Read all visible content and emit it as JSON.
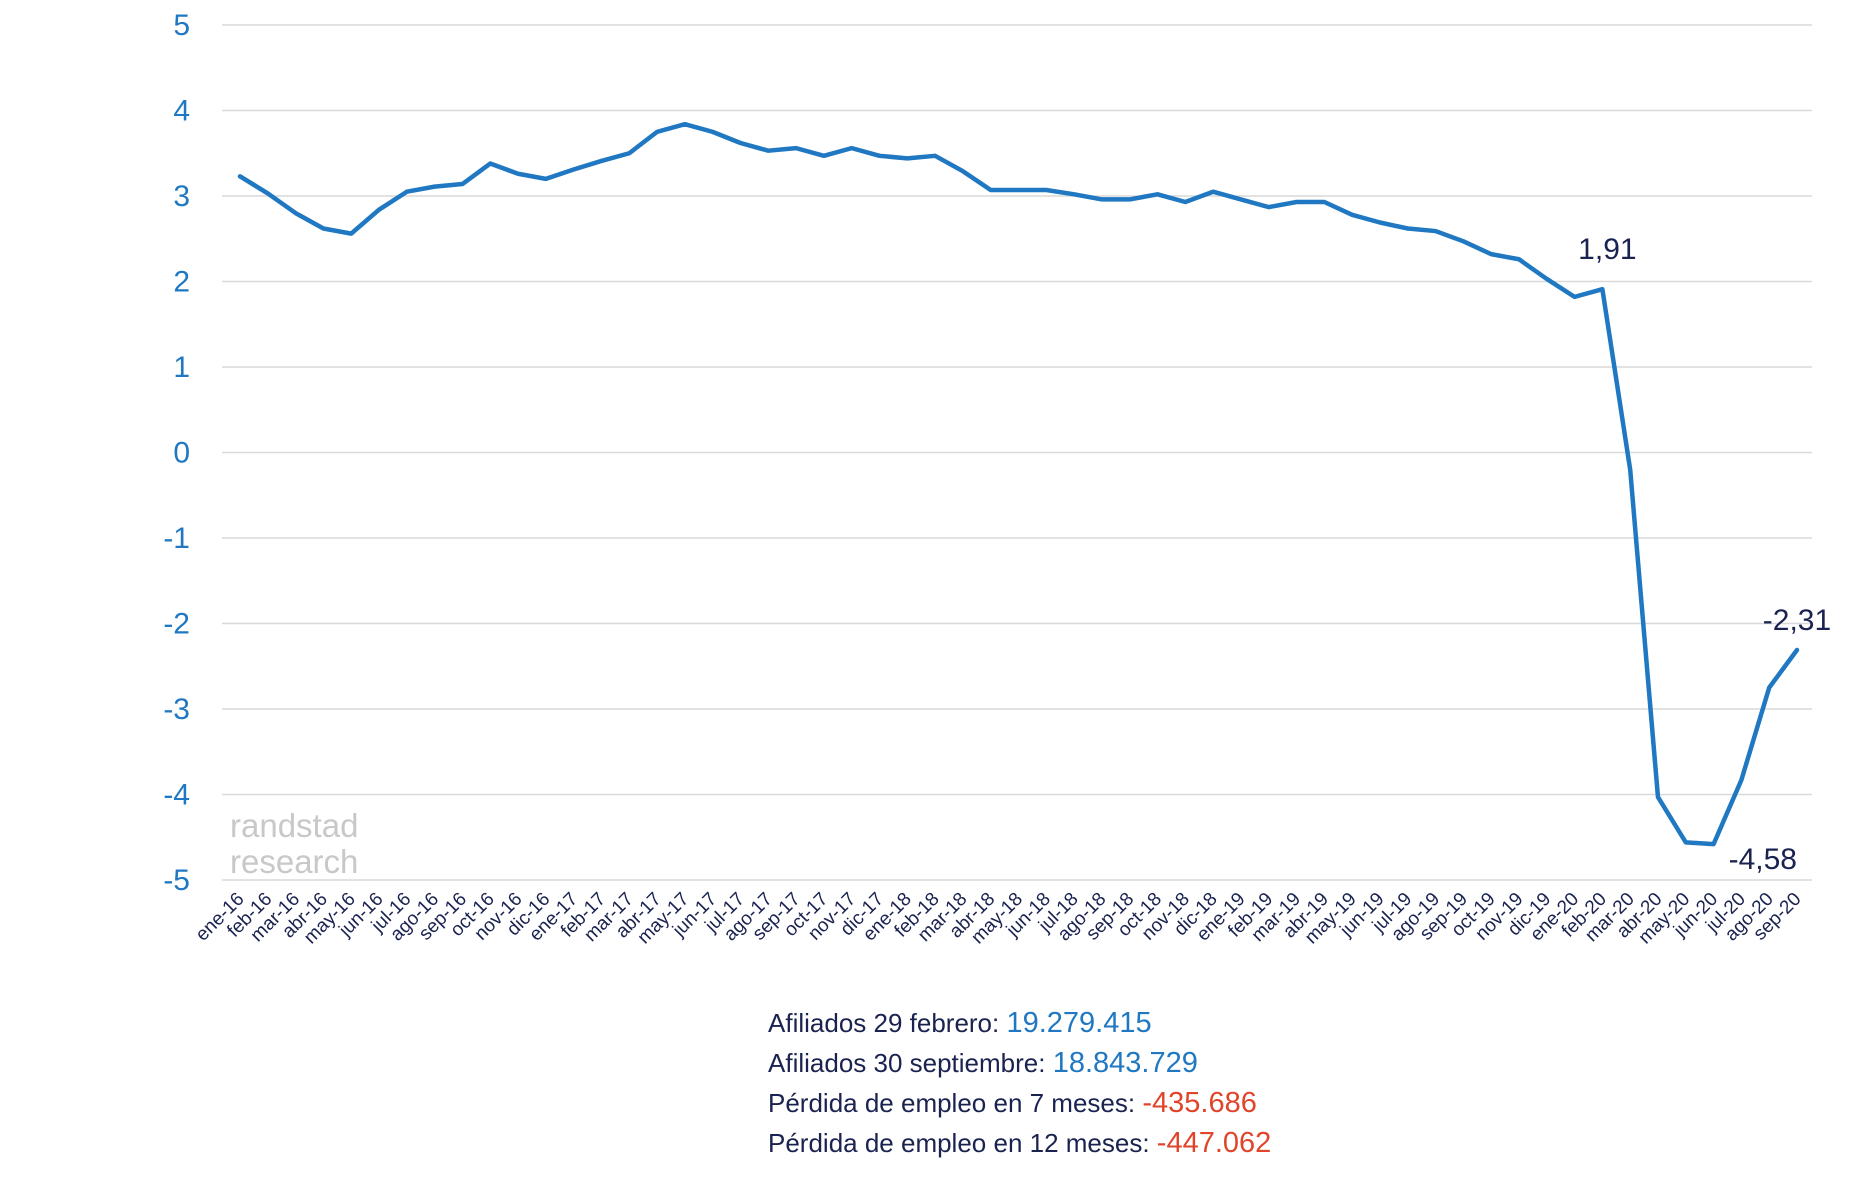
{
  "chart_data": {
    "type": "line",
    "categories": [
      "ene-16",
      "feb-16",
      "mar-16",
      "abr-16",
      "may-16",
      "jun-16",
      "jul-16",
      "ago-16",
      "sep-16",
      "oct-16",
      "nov-16",
      "dic-16",
      "ene-17",
      "feb-17",
      "mar-17",
      "abr-17",
      "may-17",
      "jun-17",
      "jul-17",
      "ago-17",
      "sep-17",
      "oct-17",
      "nov-17",
      "dic-17",
      "ene-18",
      "feb-18",
      "mar-18",
      "abr-18",
      "may-18",
      "jun-18",
      "jul-18",
      "ago-18",
      "sep-18",
      "oct-18",
      "nov-18",
      "dic-18",
      "ene-19",
      "feb-19",
      "mar-19",
      "abr-19",
      "may-19",
      "jun-19",
      "jul-19",
      "ago-19",
      "sep-19",
      "oct-19",
      "nov-19",
      "dic-19",
      "ene-20",
      "feb-20",
      "mar-20",
      "abr-20",
      "may-20",
      "jun-20",
      "jul-20",
      "ago-20",
      "sep-20"
    ],
    "series": [
      {
        "values": [
          3.23,
          3.03,
          2.8,
          2.62,
          2.56,
          2.84,
          3.05,
          3.11,
          3.14,
          3.38,
          3.26,
          3.2,
          3.31,
          3.41,
          3.5,
          3.75,
          3.84,
          3.75,
          3.62,
          3.53,
          3.56,
          3.47,
          3.56,
          3.47,
          3.44,
          3.47,
          3.29,
          3.07,
          3.07,
          3.07,
          3.02,
          2.96,
          2.96,
          3.02,
          2.93,
          3.05,
          2.96,
          2.87,
          2.93,
          2.93,
          2.78,
          2.69,
          2.62,
          2.59,
          2.47,
          2.32,
          2.26,
          2.03,
          1.82,
          1.91,
          -0.2,
          -4.03,
          -4.56,
          -4.58,
          -3.83,
          -2.75,
          -2.31
        ],
        "color": "#1f78c1"
      }
    ],
    "ylim": [
      -5,
      5
    ],
    "yticks": [
      "5",
      "4",
      "3",
      "2",
      "1",
      "0",
      "-1",
      "-2",
      "-3",
      "-4",
      "-5"
    ],
    "annotations": [
      {
        "category": "feb-20",
        "text": "1,91"
      },
      {
        "category": "jun-20",
        "text": "-4,58"
      },
      {
        "category": "sep-20",
        "text": "-2,31"
      }
    ],
    "grid": true,
    "title": "",
    "xlabel": "",
    "ylabel": ""
  },
  "watermark": {
    "line1": "randstad",
    "line2": "research"
  },
  "notes": [
    {
      "label": "Afiliados 29 febrero: ",
      "value": "19.279.415",
      "tone": "blue"
    },
    {
      "label": "Afiliados 30 septiembre: ",
      "value": "18.843.729",
      "tone": "blue"
    },
    {
      "label": "Pérdida de empleo en 7 meses: ",
      "value": "-435.686",
      "tone": "red"
    },
    {
      "label": "Pérdida de empleo en 12 meses: ",
      "value": "-447.062",
      "tone": "red"
    }
  ]
}
